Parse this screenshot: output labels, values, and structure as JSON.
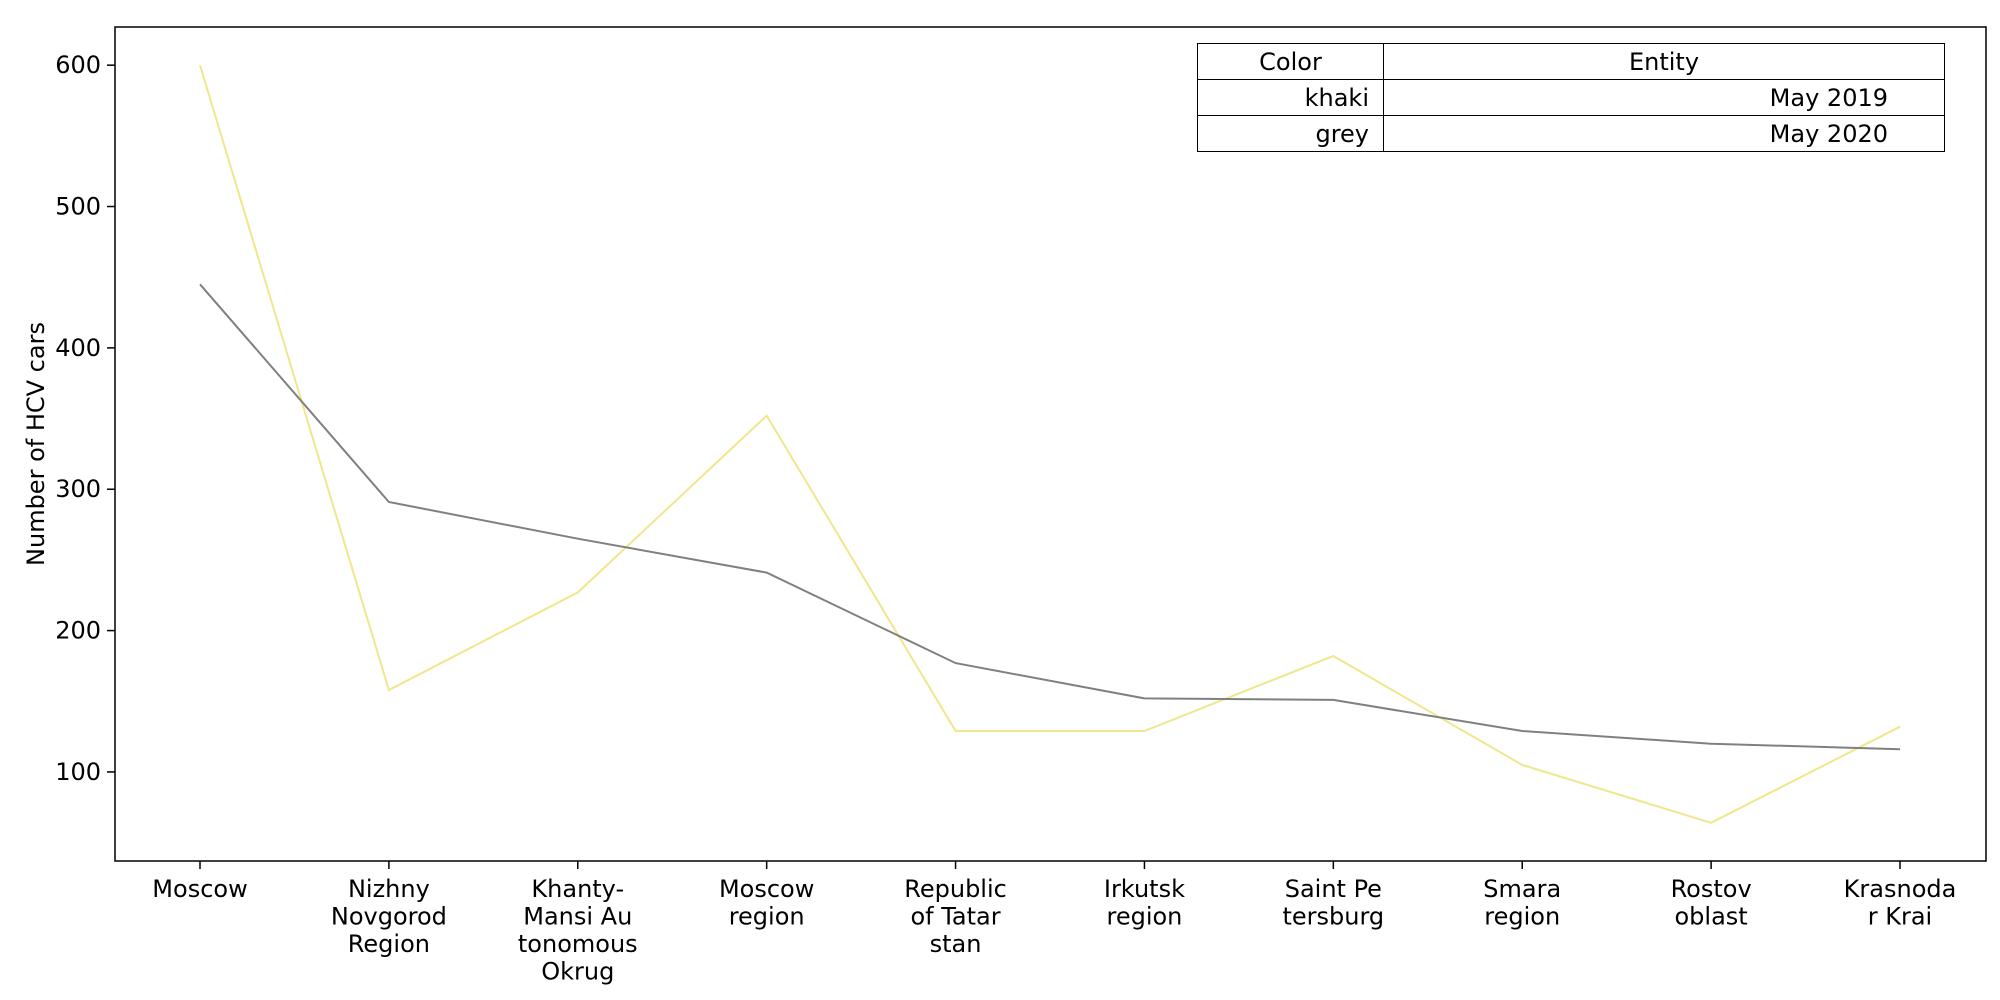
{
  "chart_data": {
    "type": "line",
    "title": "",
    "xlabel": "",
    "ylabel": "Number of HCV cars",
    "ylim": [
      37,
      627
    ],
    "yticks": [
      100,
      200,
      300,
      400,
      500,
      600
    ],
    "categories": [
      [
        "Moscow"
      ],
      [
        "Nizhny",
        "Novgorod",
        "Region"
      ],
      [
        "Khanty-",
        "Mansi Au",
        "tonomous",
        "Okrug"
      ],
      [
        "Moscow",
        "region"
      ],
      [
        "Republic",
        "of Tatar",
        "stan"
      ],
      [
        "Irkutsk",
        "region"
      ],
      [
        "Saint Pe",
        "tersburg"
      ],
      [
        "Smara",
        "region"
      ],
      [
        "Rostov",
        "oblast"
      ],
      [
        "Krasnoda",
        "r Krai"
      ]
    ],
    "series": [
      {
        "name": "May 2019",
        "color": "#f0e68c",
        "values": [
          600,
          158,
          227,
          352,
          129,
          129,
          182,
          105,
          64,
          132
        ]
      },
      {
        "name": "May 2020",
        "color": "#808080",
        "values": [
          445,
          291,
          265,
          241,
          177,
          152,
          151,
          129,
          120,
          116
        ]
      }
    ],
    "grid": false,
    "legend": {
      "placement": "top-right",
      "headers": [
        "Color",
        "Entity"
      ],
      "rows": [
        {
          "color": "khaki",
          "entity": "May 2019"
        },
        {
          "color": "grey",
          "entity": "May 2020"
        }
      ]
    }
  }
}
